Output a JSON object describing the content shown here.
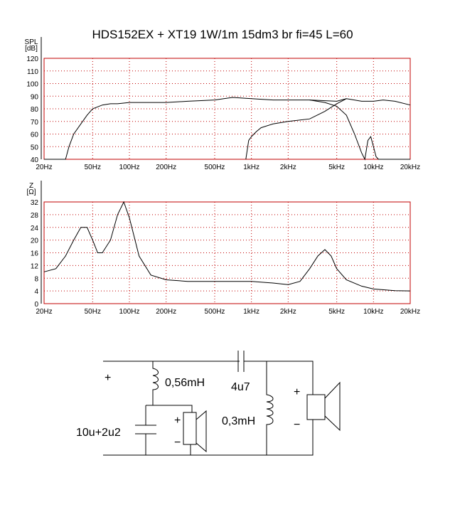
{
  "chart_data": [
    {
      "type": "line",
      "title": "HDS152EX + XT19 1W/1m 15dm3 br fi=45 L=60",
      "ylabel": "SPL",
      "yunit": "[dB]",
      "xscale": "log",
      "grid": true,
      "grid_color": "#c00000",
      "xlim": [
        20,
        20000
      ],
      "ylim": [
        40,
        120
      ],
      "xticks": [
        {
          "value": 20,
          "label": "20Hz"
        },
        {
          "value": 50,
          "label": "50Hz"
        },
        {
          "value": 100,
          "label": "100Hz"
        },
        {
          "value": 200,
          "label": "200Hz"
        },
        {
          "value": 500,
          "label": "500Hz"
        },
        {
          "value": 1000,
          "label": "1kHz"
        },
        {
          "value": 2000,
          "label": "2kHz"
        },
        {
          "value": 5000,
          "label": "5kHz"
        },
        {
          "value": 10000,
          "label": "10kHz"
        },
        {
          "value": 20000,
          "label": "20kHz"
        }
      ],
      "yticks": [
        40,
        50,
        60,
        70,
        80,
        90,
        100,
        110,
        120
      ],
      "series": [
        {
          "color": "#000000",
          "x": [
            20,
            30,
            32,
            35,
            40,
            45,
            50,
            60,
            70,
            80,
            100,
            150,
            200,
            300,
            500,
            700,
            1000,
            1500,
            2000,
            3000,
            5000,
            6000,
            8000,
            10000,
            12000,
            15000,
            20000
          ],
          "values": [
            40,
            40,
            50,
            60,
            68,
            75,
            80,
            83,
            84,
            84,
            85,
            85,
            85,
            86,
            87,
            89,
            88,
            87,
            87,
            87,
            86,
            88,
            86,
            86,
            87,
            86,
            83
          ]
        },
        {
          "color": "#000000",
          "x": [
            900,
            950,
            1000,
            1100,
            1200,
            1500,
            2000,
            3000,
            4000,
            5000,
            6000
          ],
          "values": [
            40,
            55,
            58,
            62,
            65,
            68,
            70,
            72,
            78,
            84,
            88
          ]
        },
        {
          "color": "#000000",
          "x": [
            3000,
            4000,
            5000,
            6000,
            7000,
            8000,
            8500,
            9000,
            9500,
            10000,
            10500,
            11000,
            20000
          ],
          "values": [
            87,
            85,
            82,
            75,
            60,
            45,
            40,
            55,
            58,
            50,
            42,
            40,
            40
          ]
        }
      ]
    },
    {
      "type": "line",
      "ylabel": "Z",
      "yunit": "[Ω]",
      "xscale": "log",
      "grid": true,
      "grid_color": "#c00000",
      "xlim": [
        20,
        20000
      ],
      "ylim": [
        0,
        32
      ],
      "xticks": [
        {
          "value": 20,
          "label": "20Hz"
        },
        {
          "value": 50,
          "label": "50Hz"
        },
        {
          "value": 100,
          "label": "100Hz"
        },
        {
          "value": 200,
          "label": "200Hz"
        },
        {
          "value": 500,
          "label": "500Hz"
        },
        {
          "value": 1000,
          "label": "1kHz"
        },
        {
          "value": 2000,
          "label": "2kHz"
        },
        {
          "value": 5000,
          "label": "5kHz"
        },
        {
          "value": 10000,
          "label": "10kHz"
        },
        {
          "value": 20000,
          "label": "20kHz"
        }
      ],
      "yticks": [
        0,
        4,
        8,
        12,
        16,
        20,
        24,
        28,
        32
      ],
      "series": [
        {
          "color": "#000000",
          "x": [
            20,
            25,
            30,
            35,
            40,
            45,
            50,
            55,
            60,
            70,
            80,
            90,
            100,
            120,
            150,
            200,
            300,
            500,
            1000,
            1500,
            2000,
            2500,
            3000,
            3500,
            4000,
            4500,
            5000,
            6000,
            8000,
            10000,
            15000,
            20000
          ],
          "values": [
            10,
            11,
            15,
            20,
            24,
            24,
            20,
            16,
            16,
            20,
            28,
            32,
            27,
            15,
            9,
            7.5,
            7,
            7,
            7,
            6.5,
            6,
            7,
            11,
            15,
            17,
            15,
            11,
            7.5,
            5.5,
            4.6,
            4.1,
            4
          ]
        }
      ]
    }
  ],
  "diagram": {
    "labels": [
      "0,56mH",
      "4u7",
      "0,3mH",
      "10u+2u2",
      "+",
      "+",
      "+",
      "−",
      "−"
    ]
  }
}
